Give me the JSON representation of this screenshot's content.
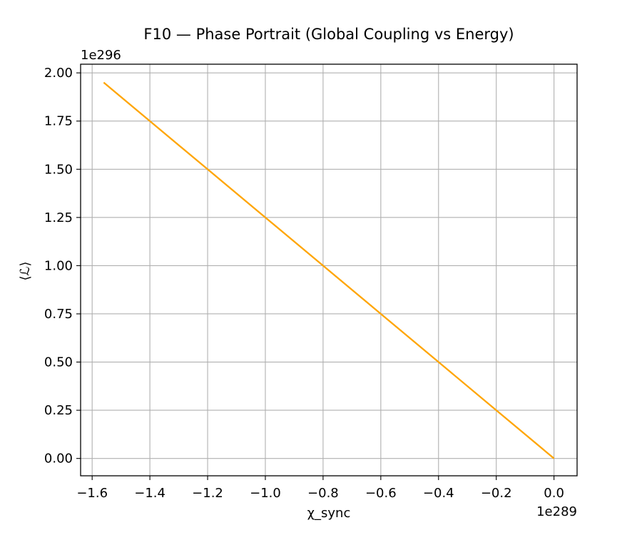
{
  "chart_data": {
    "type": "line",
    "title": "F10 — Phase Portrait (Global Coupling vs Energy)",
    "xlabel": "χ_sync",
    "ylabel": "⟨ℒ⟩",
    "x_offset_label": "1e289",
    "y_offset_label": "1e296",
    "x_scale": 1e+289,
    "y_scale": 1e+296,
    "xlim": [
      -1.64,
      0.08
    ],
    "ylim": [
      -0.09,
      2.045
    ],
    "x_ticks": [
      -1.6,
      -1.4,
      -1.2,
      -1.0,
      -0.8,
      -0.6,
      -0.4,
      -0.2,
      0.0
    ],
    "x_tick_labels": [
      "−1.6",
      "−1.4",
      "−1.2",
      "−1.0",
      "−0.8",
      "−0.6",
      "−0.4",
      "−0.2",
      "0.0"
    ],
    "y_ticks": [
      0.0,
      0.25,
      0.5,
      0.75,
      1.0,
      1.25,
      1.5,
      1.75,
      2.0
    ],
    "y_tick_labels": [
      "0.00",
      "0.25",
      "0.50",
      "0.75",
      "1.00",
      "1.25",
      "1.50",
      "1.75",
      "2.00"
    ],
    "grid": true,
    "series": [
      {
        "color": "#FFA500",
        "x": [
          -1.56,
          -1.4,
          -1.2,
          -1.0,
          -0.8,
          -0.6,
          -0.4,
          -0.2,
          0.0
        ],
        "y": [
          1.95,
          1.75,
          1.5,
          1.25,
          1.0,
          0.75,
          0.5,
          0.25,
          0.0
        ]
      }
    ]
  }
}
